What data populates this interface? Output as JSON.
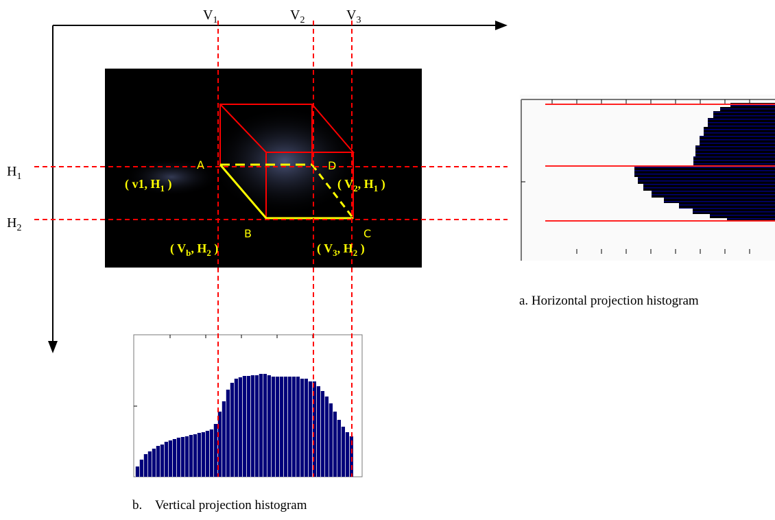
{
  "axes": {
    "v_labels": [
      {
        "main": "V",
        "sub": "1"
      },
      {
        "main": "V",
        "sub": "2"
      },
      {
        "main": "V",
        "sub": "3"
      }
    ],
    "h_labels": [
      {
        "main": "H",
        "sub": "1"
      },
      {
        "main": "H",
        "sub": "2"
      }
    ]
  },
  "points": [
    {
      "label": "A",
      "coord": [
        {
          "text": "( v1, H"
        },
        {
          "sub": "1"
        },
        {
          "text": " )"
        }
      ]
    },
    {
      "label": "D",
      "coord": [
        {
          "text": "( V"
        },
        {
          "sub": "2"
        },
        {
          "text": ", H"
        },
        {
          "sub": "1"
        },
        {
          "text": " )"
        }
      ]
    },
    {
      "label": "B",
      "coord": [
        {
          "text": "( V"
        },
        {
          "sub": "b"
        },
        {
          "text": ", H"
        },
        {
          "sub": "2"
        },
        {
          "text": " )"
        }
      ]
    },
    {
      "label": "C",
      "coord": [
        {
          "text": "( V"
        },
        {
          "sub": "3"
        },
        {
          "text": ", H"
        },
        {
          "sub": "2"
        },
        {
          "text": " )"
        }
      ]
    }
  ],
  "captions": {
    "horizontal": "a. Horizontal projection histogram",
    "vertical": "b.    Vertical projection histogram"
  }
}
